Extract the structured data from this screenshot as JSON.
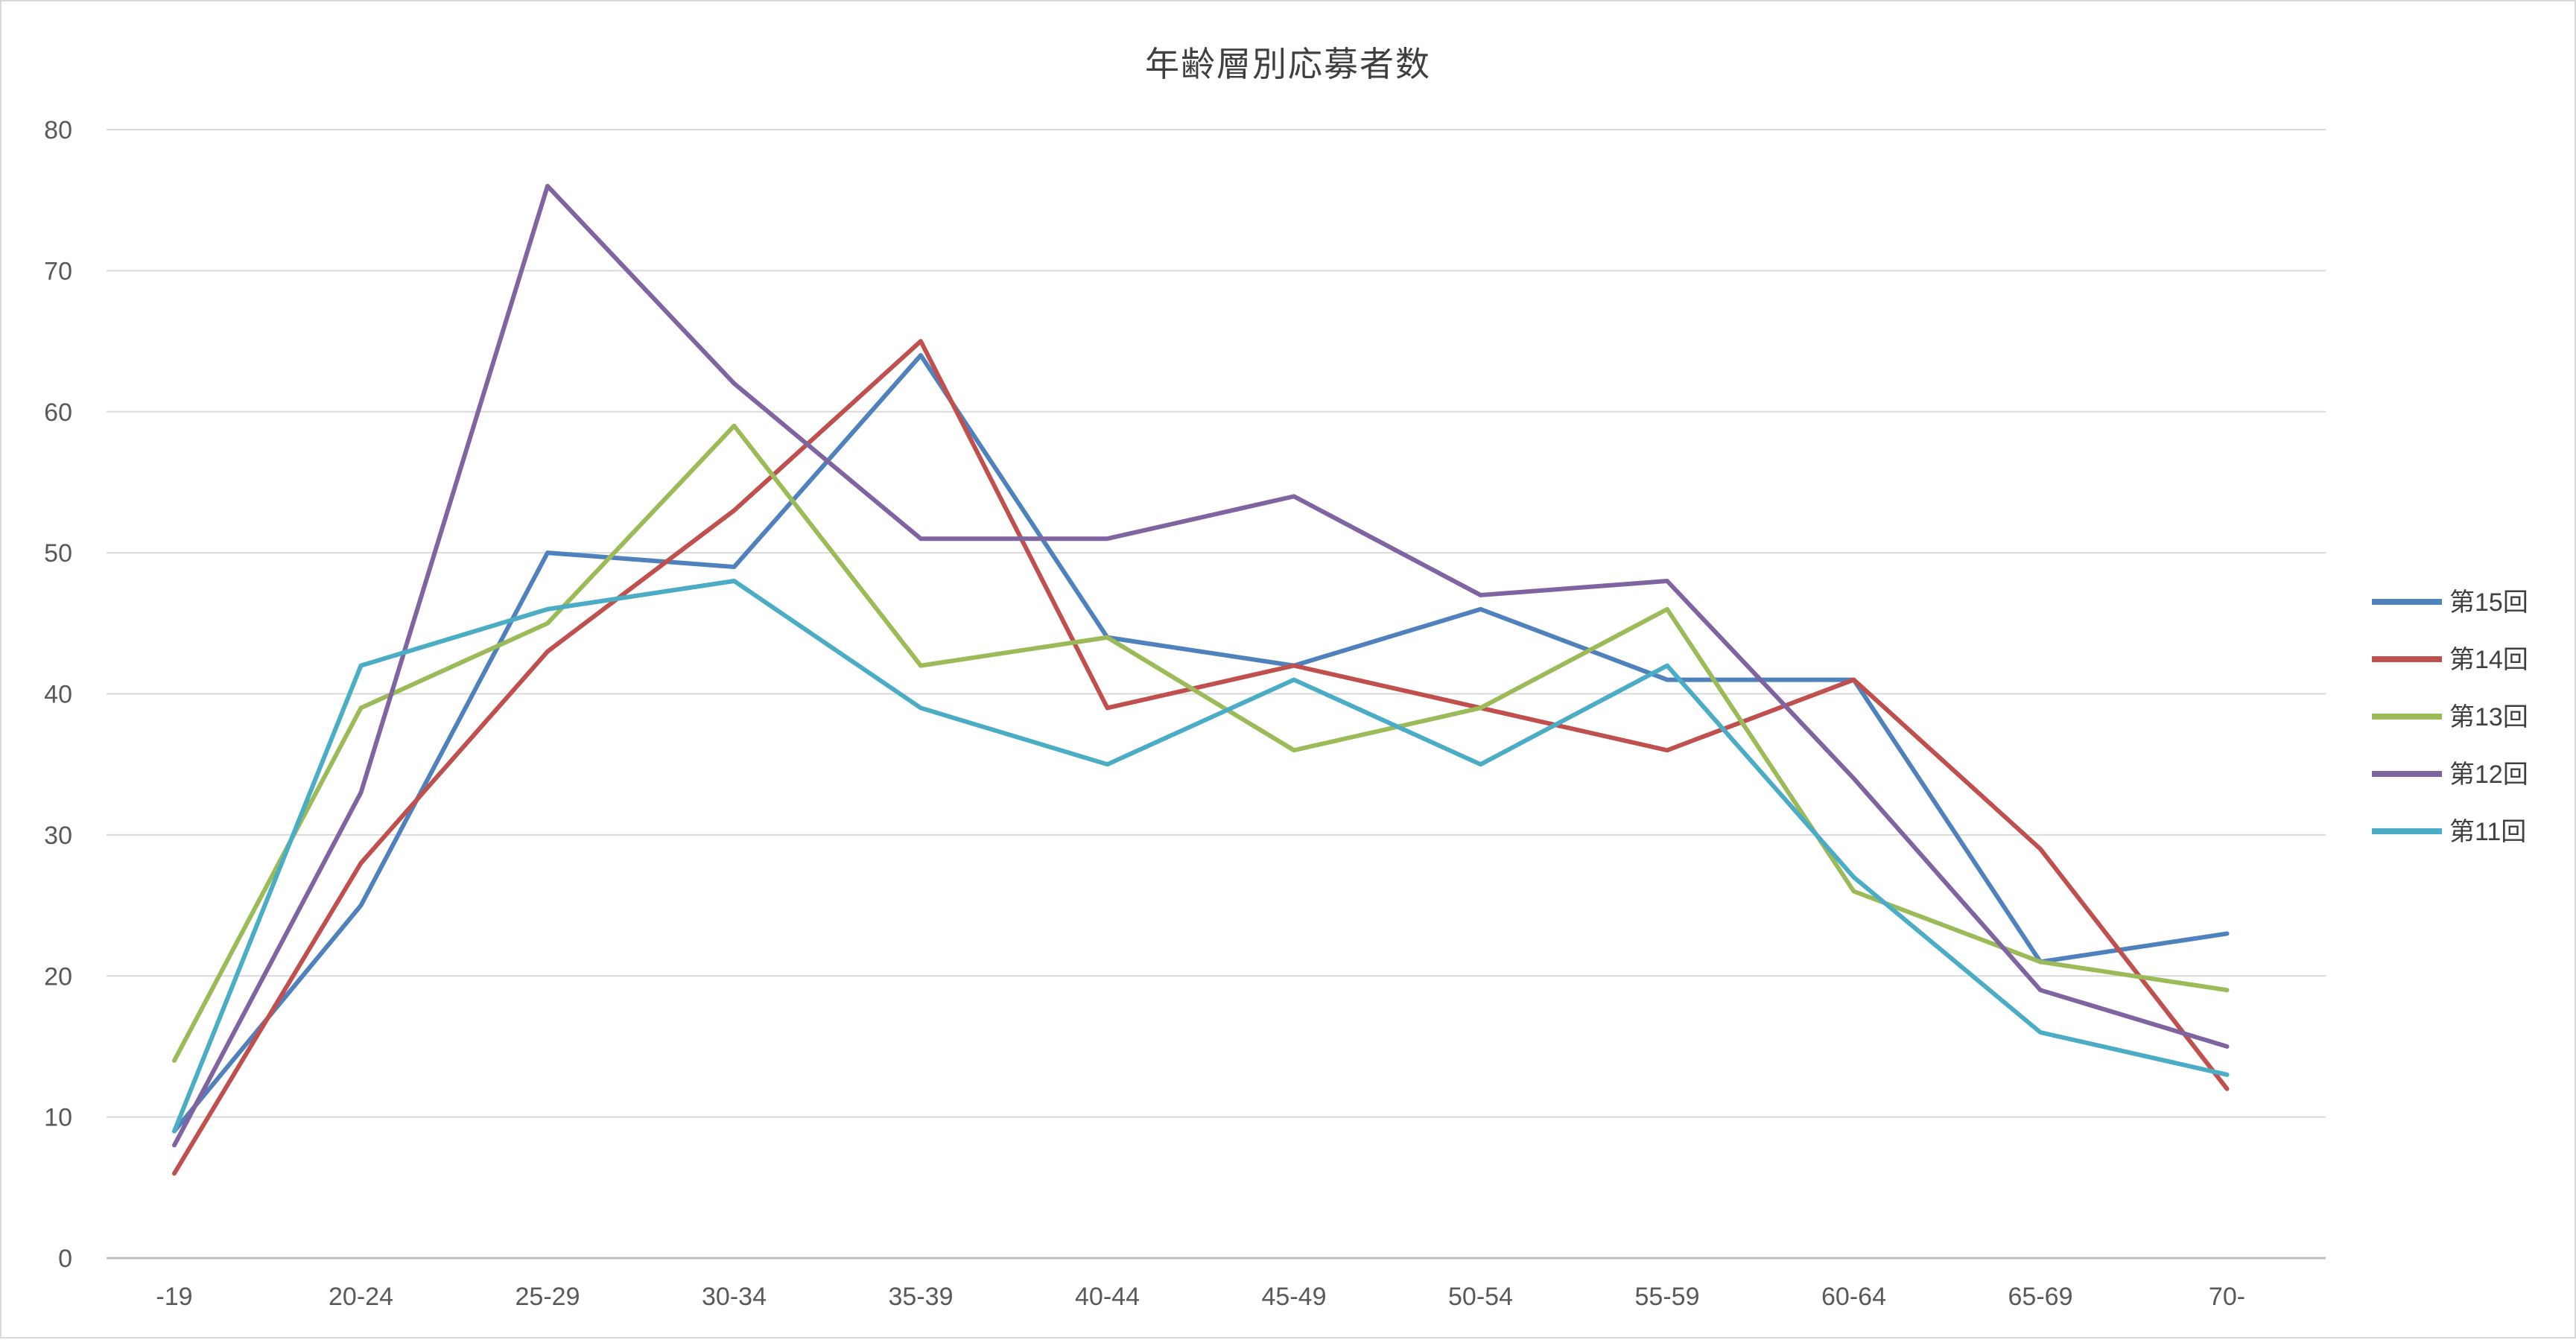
{
  "chart_data": {
    "type": "line",
    "title": "年齢層別応募者数",
    "categories": [
      "-19",
      "20-24",
      "25-29",
      "30-34",
      "35-39",
      "40-44",
      "45-49",
      "50-54",
      "55-59",
      "60-64",
      "65-69",
      "70-"
    ],
    "series": [
      {
        "name": "第15回",
        "color": "#4F81BD",
        "values": [
          9,
          25,
          50,
          49,
          64,
          44,
          42,
          46,
          41,
          41,
          21,
          23
        ]
      },
      {
        "name": "第14回",
        "color": "#C0504D",
        "values": [
          6,
          28,
          43,
          53,
          65,
          39,
          42,
          39,
          36,
          41,
          29,
          12
        ]
      },
      {
        "name": "第13回",
        "color": "#9BBB59",
        "values": [
          14,
          39,
          45,
          59,
          42,
          44,
          36,
          39,
          46,
          26,
          21,
          19
        ]
      },
      {
        "name": "第12回",
        "color": "#8064A2",
        "values": [
          8,
          33,
          76,
          62,
          51,
          51,
          54,
          47,
          48,
          34,
          19,
          15
        ]
      },
      {
        "name": "第11回",
        "color": "#4BACC6",
        "values": [
          9,
          42,
          46,
          48,
          39,
          35,
          41,
          35,
          42,
          27,
          16,
          13
        ]
      }
    ],
    "ylim": [
      0,
      80
    ],
    "ytick_step": 10,
    "ytick_labels": [
      "0",
      "10",
      "20",
      "30",
      "40",
      "50",
      "60",
      "70",
      "80"
    ],
    "grid": "horizontal",
    "legend_position": "right",
    "grid_color": "#d9d9d9",
    "axis_color": "#bfbfbf",
    "text_color": "#595959",
    "title_color": "#3f3f3f"
  }
}
